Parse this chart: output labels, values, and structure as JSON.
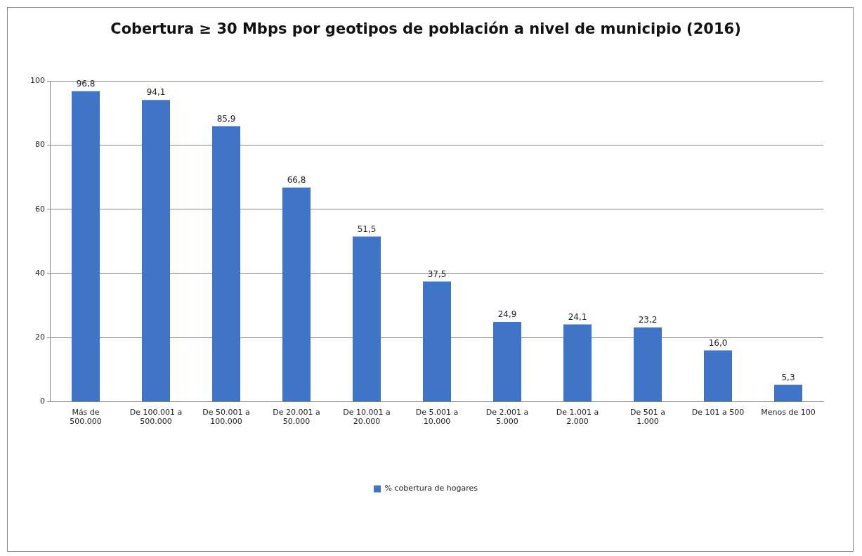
{
  "chart_data": {
    "type": "bar",
    "title": "Cobertura ≥ 30 Mbps por geotipos de población a nivel de municipio (2016)",
    "categories": [
      "Más de 500.000",
      "De 100.001 a 500.000",
      "De 50.001 a 100.000",
      "De 20.001 a 50.000",
      "De 10.001 a 20.000",
      "De 5.001 a 10.000",
      "De 2.001 a 5.000",
      "De 1.001 a 2.000",
      "De 501 a 1.000",
      "De 101 a 500",
      "Menos de 100"
    ],
    "series": [
      {
        "name": "% cobertura de hogares",
        "color": "#3f74c6",
        "values": [
          96.8,
          94.1,
          85.9,
          66.8,
          51.5,
          37.5,
          24.9,
          24.1,
          23.2,
          16.0,
          5.3
        ],
        "value_labels": [
          "96,8",
          "94,1",
          "85,9",
          "66,8",
          "51,5",
          "37,5",
          "24,9",
          "24,1",
          "23,2",
          "16,0",
          "5,3"
        ]
      }
    ],
    "ylim": [
      0,
      100
    ],
    "yticks": [
      0,
      20,
      40,
      60,
      80,
      100
    ],
    "grid": "y",
    "legend": "bottom"
  }
}
